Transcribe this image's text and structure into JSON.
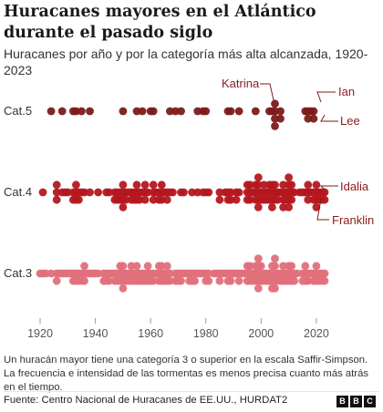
{
  "header": {
    "title": "Huracanes mayores en el Atlántico durante el pasado siglo",
    "subtitle": "Huracanes por año y por la categoría más alta alcanzada, 1920-2023"
  },
  "footer": {
    "note": "Un huracán mayor tiene una categoría 3 o superior en la escala Saffir-Simpson. La frecuencia e intensidad de las tormentas es menos precisa cuanto más atrás en el tiempo.",
    "source": "Fuente: Centro Nacional de Huracanes de EE.UU., HURDAT2",
    "logo": [
      "B",
      "B",
      "C"
    ]
  },
  "colors": {
    "cat5": "#7b1a1a",
    "cat4": "#b5171f",
    "cat3": "#e0707b",
    "axis": "#999999",
    "label": "#333333"
  },
  "chart_data": {
    "type": "scatter",
    "xlim": [
      1920,
      2023
    ],
    "xticks": [
      1920,
      1940,
      1960,
      1980,
      2000,
      2020
    ],
    "rows": [
      {
        "name": "Cat.5",
        "color": "#7b1a1a",
        "counts": {
          "1924": 1,
          "1928": 1,
          "1932": 1,
          "1933": 1,
          "1935": 1,
          "1938": 1,
          "1950": 1,
          "1955": 1,
          "1957": 1,
          "1960": 1,
          "1961": 1,
          "1967": 1,
          "1969": 1,
          "1971": 1,
          "1977": 1,
          "1979": 1,
          "1980": 1,
          "1988": 1,
          "1989": 1,
          "1992": 1,
          "1998": 1,
          "2003": 1,
          "2004": 1,
          "2005": 4,
          "2007": 2,
          "2016": 1,
          "2017": 2,
          "2018": 1,
          "2019": 2
        }
      },
      {
        "name": "Cat.4",
        "color": "#b5171f",
        "counts": {
          "1920": 0
        }
      },
      {
        "name": "Cat.3",
        "color": "#e0707b",
        "counts": {
          "1920": 0
        }
      }
    ],
    "annotations": [
      {
        "label": "Katrina",
        "year": 2005,
        "row": "Cat.5"
      },
      {
        "label": "Ian",
        "year": 2022,
        "row": "Cat.5"
      },
      {
        "label": "Lee",
        "year": 2023,
        "row": "Cat.5"
      },
      {
        "label": "Idalia",
        "year": 2023,
        "row": "Cat.4"
      },
      {
        "label": "Franklin",
        "year": 2023,
        "row": "Cat.4"
      }
    ]
  }
}
